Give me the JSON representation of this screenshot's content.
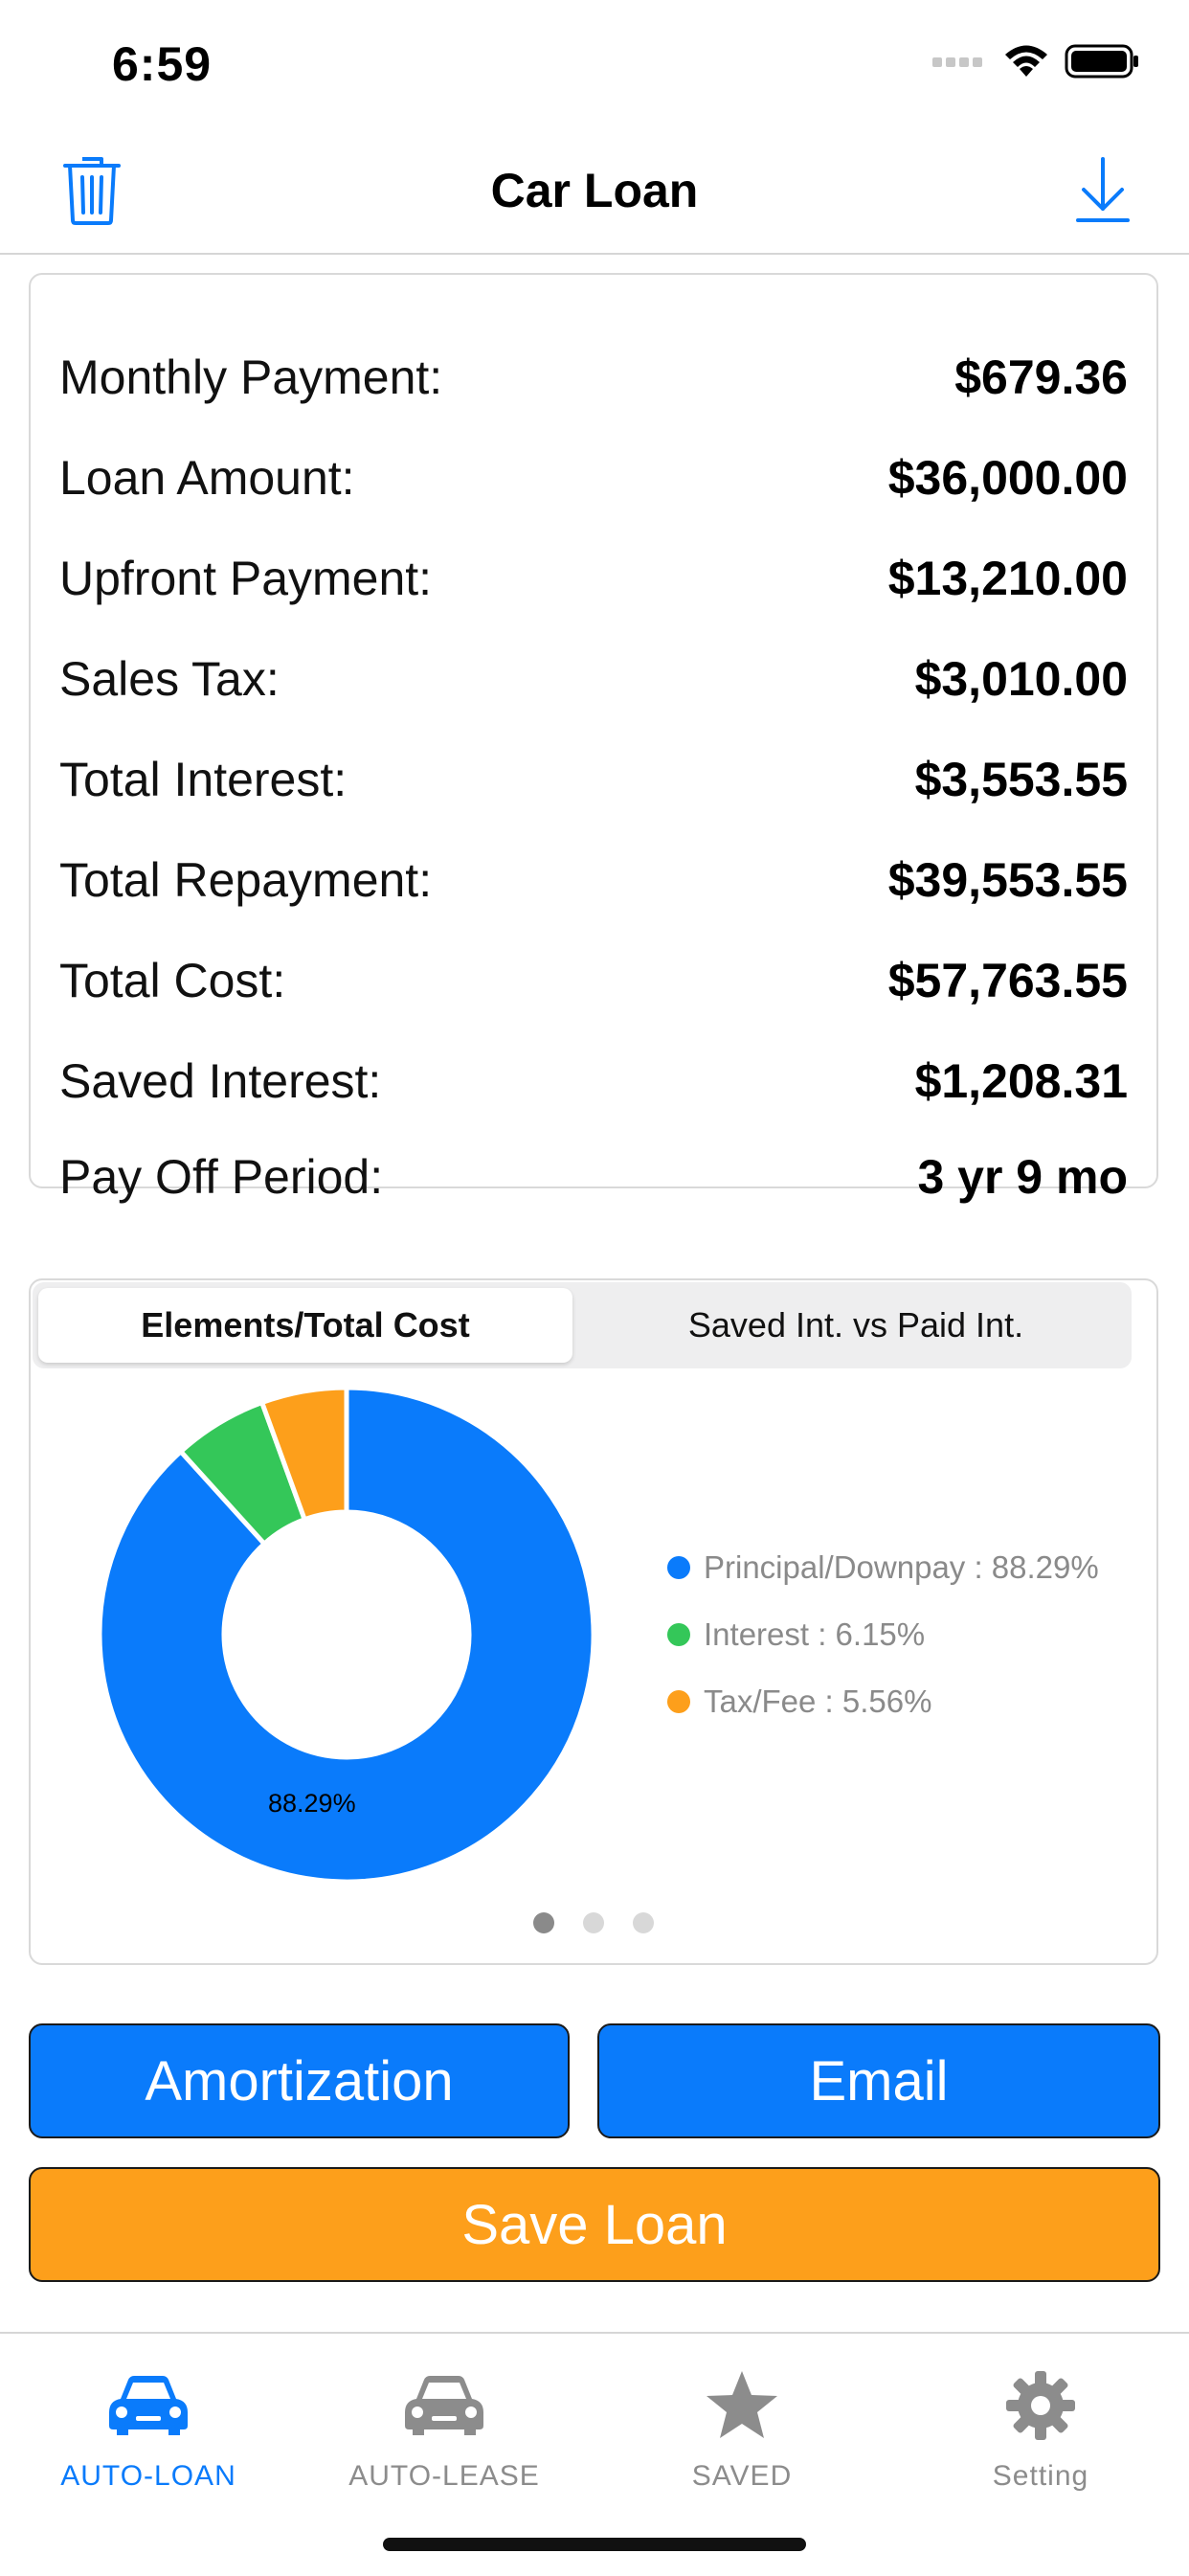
{
  "status_bar": {
    "time": "6:59"
  },
  "nav": {
    "title": "Car Loan"
  },
  "summary": [
    {
      "label": "Monthly Payment:",
      "value": "$679.36"
    },
    {
      "label": "Loan Amount:",
      "value": "$36,000.00"
    },
    {
      "label": "Upfront Payment:",
      "value": "$13,210.00"
    },
    {
      "label": "Sales Tax:",
      "value": "$3,010.00"
    },
    {
      "label": "Total Interest:",
      "value": "$3,553.55"
    },
    {
      "label": "Total Repayment:",
      "value": "$39,553.55"
    },
    {
      "label": "Total Cost:",
      "value": "$57,763.55"
    },
    {
      "label": "Saved Interest:",
      "value": "$1,208.31"
    },
    {
      "label": "Pay Off Period:",
      "value": "3 yr 9 mo"
    }
  ],
  "chart": {
    "tabs": [
      "Elements/Total Cost",
      "Saved Int. vs Paid Int."
    ],
    "selected_tab": 0,
    "slice_label": "88.29%",
    "page_count": 3,
    "current_page": 0
  },
  "chart_data": {
    "type": "pie",
    "donut": true,
    "series": [
      {
        "name": "Principal/Downpay",
        "value": 88.29,
        "color": "#0a7bfb",
        "legend_text": "Principal/Downpay : 88.29%"
      },
      {
        "name": "Interest",
        "value": 6.15,
        "color": "#34c759",
        "legend_text": "Interest : 6.15%"
      },
      {
        "name": "Tax/Fee",
        "value": 5.56,
        "color": "#fd9f1b",
        "legend_text": "Tax/Fee : 5.56%"
      }
    ]
  },
  "buttons": {
    "amortization": "Amortization",
    "email": "Email",
    "save": "Save Loan"
  },
  "tabs": [
    {
      "label": "AUTO-LOAN",
      "icon": "car-front-icon",
      "active": true
    },
    {
      "label": "AUTO-LEASE",
      "icon": "car-front-icon",
      "active": false
    },
    {
      "label": "SAVED",
      "icon": "star-icon",
      "active": false
    },
    {
      "label": "Setting",
      "icon": "gear-icon",
      "active": false
    }
  ],
  "colors": {
    "accent": "#0a7bfb",
    "orange": "#fd9f1b",
    "green": "#34c759",
    "inactive": "#8c8c8c"
  }
}
